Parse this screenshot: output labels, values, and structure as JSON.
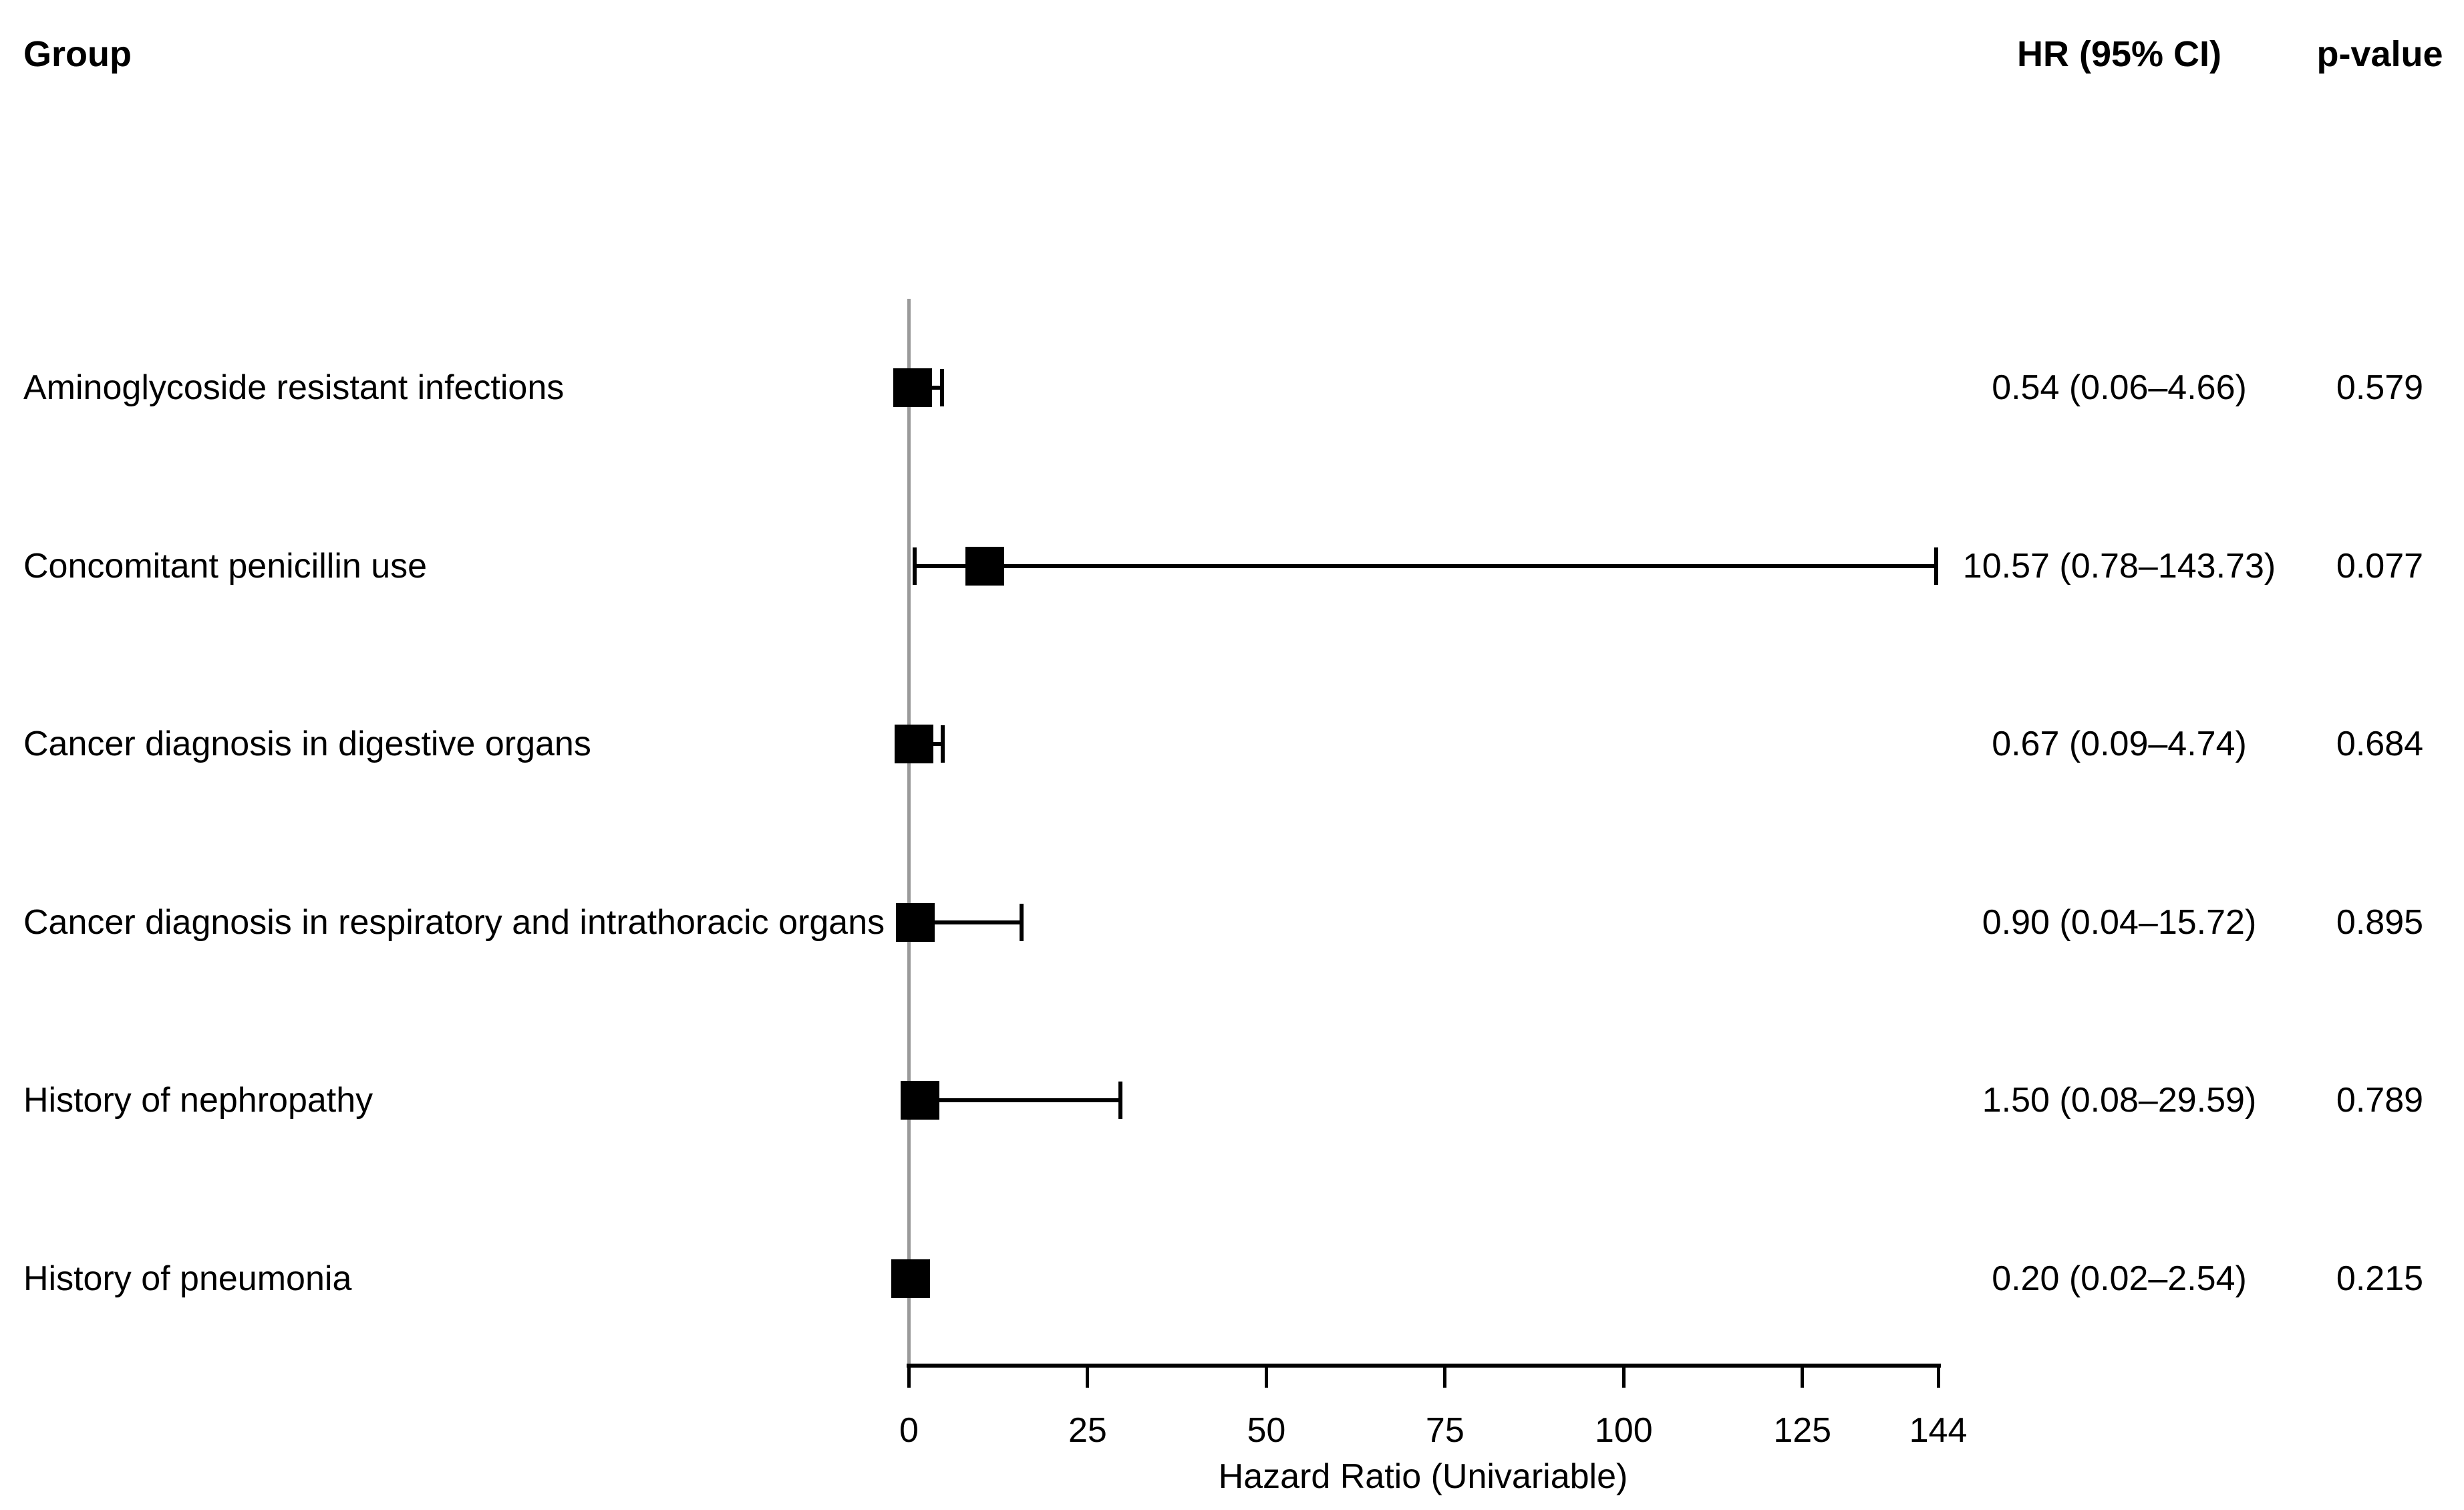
{
  "chart_data": {
    "type": "forest",
    "columns": {
      "group": "Group",
      "hr_ci": "HR (95% CI)",
      "p": "p-value"
    },
    "xlabel": "Hazard Ratio (Univariable)",
    "xlim": [
      0,
      144
    ],
    "x_ticks": [
      0,
      25,
      50,
      75,
      100,
      125,
      144
    ],
    "reference_line_x": 0,
    "grid": false,
    "rows": [
      {
        "label": "Aminoglycoside resistant infections",
        "hr": 0.54,
        "ci_low": 0.06,
        "ci_high": 4.66,
        "hr_ci_text": "0.54 (0.06–4.66)",
        "p_text": "0.579"
      },
      {
        "label": "Concomitant penicillin use",
        "hr": 10.57,
        "ci_low": 0.78,
        "ci_high": 143.73,
        "hr_ci_text": "10.57 (0.78–143.73)",
        "p_text": "0.077"
      },
      {
        "label": "Cancer diagnosis in digestive organs",
        "hr": 0.67,
        "ci_low": 0.09,
        "ci_high": 4.74,
        "hr_ci_text": "0.67 (0.09–4.74)",
        "p_text": "0.684"
      },
      {
        "label": "Cancer diagnosis in respiratory and intrathoracic organs",
        "hr": 0.9,
        "ci_low": 0.04,
        "ci_high": 15.72,
        "hr_ci_text": "0.90 (0.04–15.72)",
        "p_text": "0.895"
      },
      {
        "label": "History of nephropathy",
        "hr": 1.5,
        "ci_low": 0.08,
        "ci_high": 29.59,
        "hr_ci_text": "1.50 (0.08–29.59)",
        "p_text": "0.789"
      },
      {
        "label": "History of pneumonia",
        "hr": 0.2,
        "ci_low": 0.02,
        "ci_high": 2.54,
        "hr_ci_text": "0.20 (0.02–2.54)",
        "p_text": "0.215"
      }
    ],
    "colors": {
      "marker": "#000000",
      "whisker": "#000000",
      "reference_line": "#9a9a9a",
      "text": "#000000",
      "background": "#ffffff"
    }
  }
}
